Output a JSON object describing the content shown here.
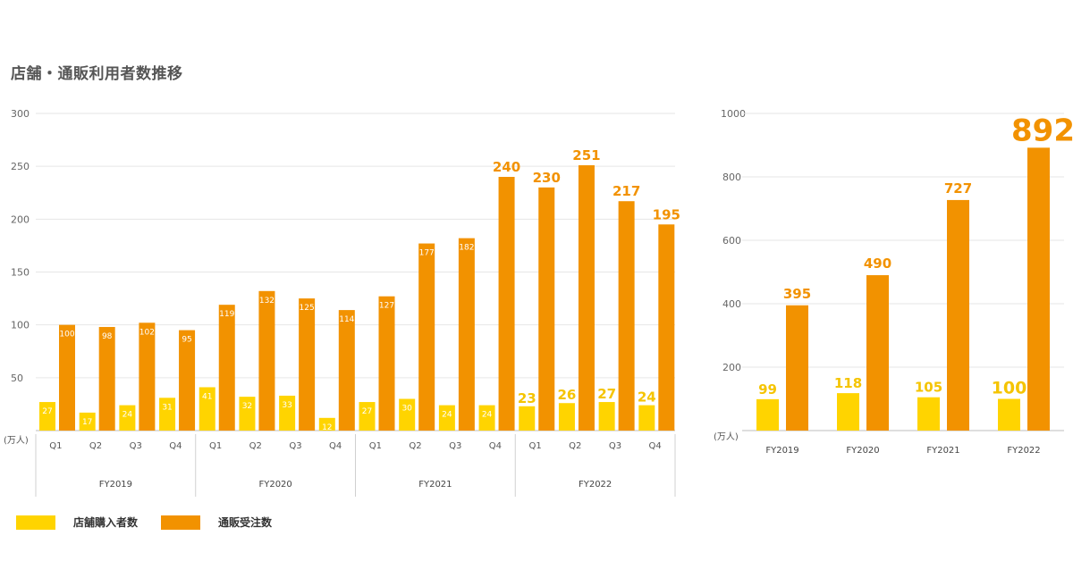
{
  "title": "店舗・通販利用者数推移",
  "unit": "(万人)",
  "colors": {
    "store": "#FFD400",
    "online": "#F29200",
    "store_label_big": "#F5C400",
    "online_label_big": "#F29200"
  },
  "legend": [
    {
      "label": "店舗購入者数",
      "color": "#FFD400"
    },
    {
      "label": "通販受注数",
      "color": "#F29200"
    }
  ],
  "chart_data": [
    {
      "type": "bar",
      "yticks": [
        50,
        100,
        150,
        200,
        250,
        300
      ],
      "ylim": [
        0,
        300
      ],
      "groups": [
        "FY2019",
        "FY2020",
        "FY2021",
        "FY2022"
      ],
      "categories": [
        "Q1",
        "Q2",
        "Q3",
        "Q4",
        "Q1",
        "Q2",
        "Q3",
        "Q4",
        "Q1",
        "Q2",
        "Q3",
        "Q4",
        "Q1",
        "Q2",
        "Q3",
        "Q4"
      ],
      "series": [
        {
          "name": "店舗購入者数",
          "values": [
            27,
            17,
            24,
            31,
            41,
            32,
            33,
            12,
            27,
            30,
            24,
            24,
            23,
            26,
            27,
            24
          ]
        },
        {
          "name": "通販受注数",
          "values": [
            100,
            98,
            102,
            95,
            119,
            132,
            125,
            114,
            127,
            177,
            182,
            240,
            230,
            251,
            217,
            195
          ]
        }
      ]
    },
    {
      "type": "bar",
      "yticks": [
        200,
        400,
        600,
        800,
        1000
      ],
      "ylim": [
        0,
        1000
      ],
      "categories": [
        "FY2019",
        "FY2020",
        "FY2021",
        "FY2022"
      ],
      "series": [
        {
          "name": "店舗購入者数",
          "values": [
            99,
            118,
            105,
            100
          ]
        },
        {
          "name": "通販受注数",
          "values": [
            395,
            490,
            727,
            892
          ]
        }
      ]
    }
  ]
}
